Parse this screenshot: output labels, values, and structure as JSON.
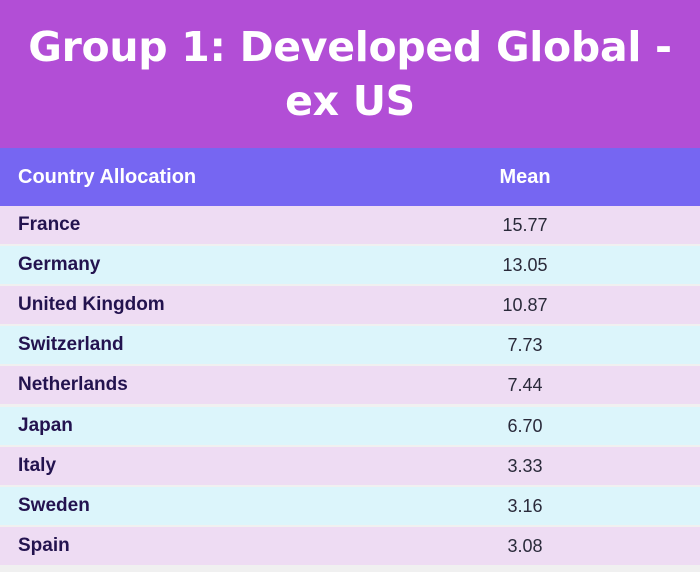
{
  "title": "Group 1: Developed Global - ex US",
  "colors": {
    "title_bg": "#b24ed6",
    "header_bg": "#7666f2",
    "row_odd": "#eedcf3",
    "row_even": "#dcf5fb",
    "country_text": "#23134f"
  },
  "table": {
    "headers": {
      "country": "Country Allocation",
      "mean": "Mean"
    },
    "rows": [
      {
        "country": "France",
        "mean": "15.77"
      },
      {
        "country": "Germany",
        "mean": "13.05"
      },
      {
        "country": "United Kingdom",
        "mean": "10.87"
      },
      {
        "country": "Switzerland",
        "mean": "7.73"
      },
      {
        "country": "Netherlands",
        "mean": "7.44"
      },
      {
        "country": "Japan",
        "mean": "6.70"
      },
      {
        "country": "Italy",
        "mean": "3.33"
      },
      {
        "country": "Sweden",
        "mean": "3.16"
      },
      {
        "country": "Spain",
        "mean": "3.08"
      }
    ]
  },
  "chart_data": {
    "type": "table",
    "title": "Group 1: Developed Global - ex US",
    "columns": [
      "Country Allocation",
      "Mean"
    ],
    "categories": [
      "France",
      "Germany",
      "United Kingdom",
      "Switzerland",
      "Netherlands",
      "Japan",
      "Italy",
      "Sweden",
      "Spain"
    ],
    "values": [
      15.77,
      13.05,
      10.87,
      7.73,
      7.44,
      6.7,
      3.33,
      3.16,
      3.08
    ]
  }
}
